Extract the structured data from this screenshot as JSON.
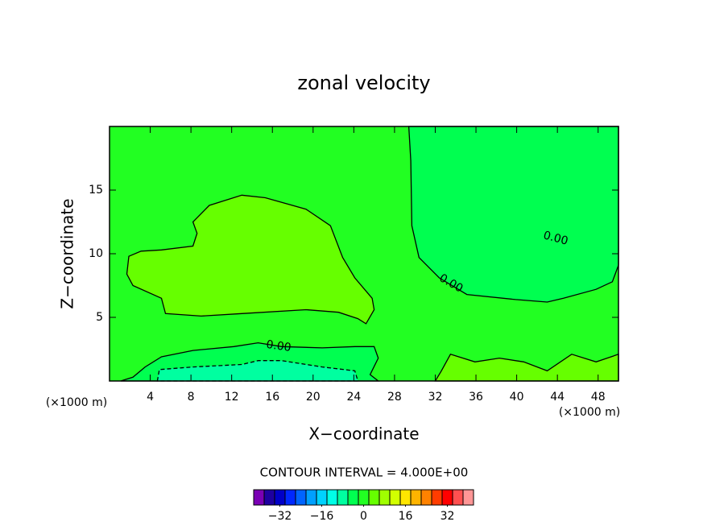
{
  "chart_data": {
    "type": "contour",
    "title": "zonal velocity",
    "xlabel": "X−coordinate",
    "ylabel": "Z−coordinate",
    "x_unit": "(×1000 m)",
    "y_unit": "(×1000 m)",
    "xlim": [
      0,
      50
    ],
    "ylim": [
      0,
      20
    ],
    "xticks": [
      4,
      8,
      12,
      16,
      20,
      24,
      28,
      32,
      36,
      40,
      44,
      48
    ],
    "yticks": [
      5,
      10,
      15
    ],
    "contour_interval": "CONTOUR INTERVAL = 4.000E+00",
    "contour_label": "0.00",
    "background_level": 10,
    "regions": [
      {
        "level": 11,
        "x": [
          1.9,
          3.1,
          5.1,
          8.2,
          8.6,
          8.2,
          9.8,
          13.0,
          15.3,
          19.3,
          21.7,
          22.9,
          24.1,
          25.8,
          26.0,
          25.2,
          24.4,
          22.5,
          19.3,
          13.0,
          9.0,
          5.5,
          5.1,
          2.3,
          1.7
        ],
        "z": [
          9.8,
          10.2,
          10.3,
          10.6,
          11.6,
          12.5,
          13.8,
          14.6,
          14.4,
          13.5,
          12.2,
          9.7,
          8.1,
          6.5,
          5.6,
          4.5,
          4.9,
          5.4,
          5.6,
          5.3,
          5.1,
          5.3,
          6.5,
          7.5,
          8.4
        ]
      },
      {
        "level": 9,
        "x": [
          1.1,
          2.3,
          3.5,
          5.1,
          8.2,
          12.2,
          14.6,
          16.9,
          20.9,
          24.1,
          26.0,
          26.4,
          25.6,
          26.4
        ],
        "z": [
          0,
          0.3,
          1.1,
          1.9,
          2.4,
          2.7,
          3.0,
          2.7,
          2.6,
          2.7,
          2.7,
          1.8,
          0.5,
          0
        ]
      },
      {
        "level": 8,
        "x": [
          4.7,
          4.9,
          8.2,
          13.0,
          14.6,
          16.9,
          20.9,
          24.1,
          24.4
        ],
        "z": [
          0,
          0.9,
          1.1,
          1.3,
          1.6,
          1.6,
          1.1,
          0.8,
          0
        ]
      },
      {
        "level": 9,
        "x": [
          29.4,
          29.6,
          29.7,
          30.4,
          32.4,
          35.1,
          39.9,
          43.0,
          44.6,
          47.8,
          49.4,
          50,
          50
        ],
        "z": [
          20,
          17.3,
          12.2,
          9.7,
          8.1,
          6.8,
          6.4,
          6.2,
          6.5,
          7.2,
          7.8,
          9.1,
          20
        ]
      },
      {
        "level": 11,
        "x": [
          32,
          32.6,
          33.5,
          35.9,
          38.3,
          40.7,
          43.0,
          45.4,
          47.8,
          50,
          50
        ],
        "z": [
          0,
          0.8,
          2.1,
          1.5,
          1.8,
          1.5,
          0.8,
          2.1,
          1.5,
          2.1,
          0
        ]
      }
    ],
    "colorbar": {
      "colors": [
        "#7a00b4",
        "#1e00a0",
        "#0000c8",
        "#0028ff",
        "#0064ff",
        "#00a0ff",
        "#00d2ff",
        "#00ffe6",
        "#00ffa0",
        "#00ff50",
        "#22ff22",
        "#66ff00",
        "#a0ff00",
        "#d2ff00",
        "#ffe600",
        "#ffb400",
        "#ff8200",
        "#ff3c00",
        "#ff0000",
        "#ff5050",
        "#ff9696"
      ],
      "bounds": [
        -42,
        -38,
        -34,
        -30,
        -26,
        -22,
        -18,
        -14,
        -10,
        -6,
        -2,
        2,
        6,
        10,
        14,
        18,
        22,
        26,
        30,
        34,
        38,
        42
      ],
      "lim": [
        -42,
        42
      ],
      "ticks": [
        {
          "value": -32,
          "label": "−32"
        },
        {
          "value": -16,
          "label": "−16"
        },
        0,
        16,
        32
      ]
    }
  }
}
